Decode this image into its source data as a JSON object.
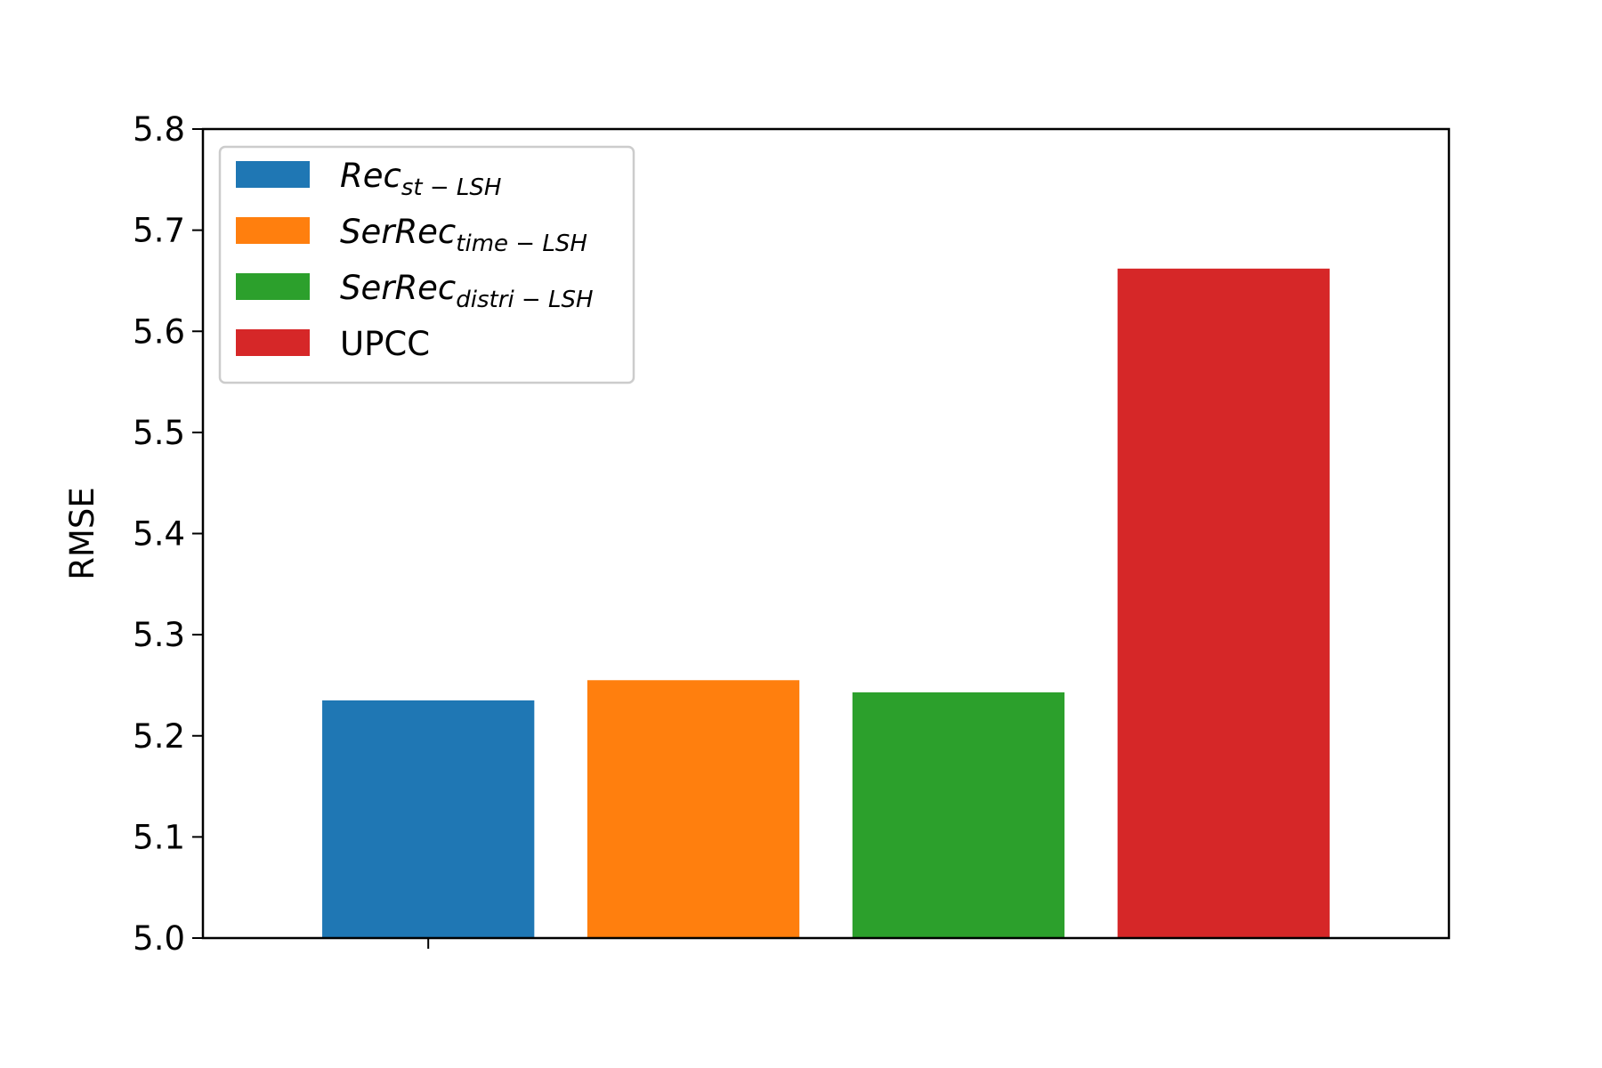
{
  "chart_data": {
    "type": "bar",
    "title": "",
    "xlabel": "",
    "ylabel": "RMSE",
    "ylim": [
      5.0,
      5.8
    ],
    "yticks": [
      "5.0",
      "5.1",
      "5.2",
      "5.3",
      "5.4",
      "5.5",
      "5.6",
      "5.7",
      "5.8"
    ],
    "grid": false,
    "legend_position": "upper-left",
    "series": [
      {
        "name": "Rec",
        "subscript": "st − LSH",
        "value": 5.235,
        "color": "#1f77b4"
      },
      {
        "name": "SerRec",
        "subscript": "time − LSH",
        "value": 5.255,
        "color": "#ff7f0e"
      },
      {
        "name": "SerRec",
        "subscript": "distri − LSH",
        "value": 5.243,
        "color": "#2ca02c"
      },
      {
        "name": "UPCC",
        "subscript": "",
        "value": 5.662,
        "color": "#d62728"
      }
    ]
  }
}
